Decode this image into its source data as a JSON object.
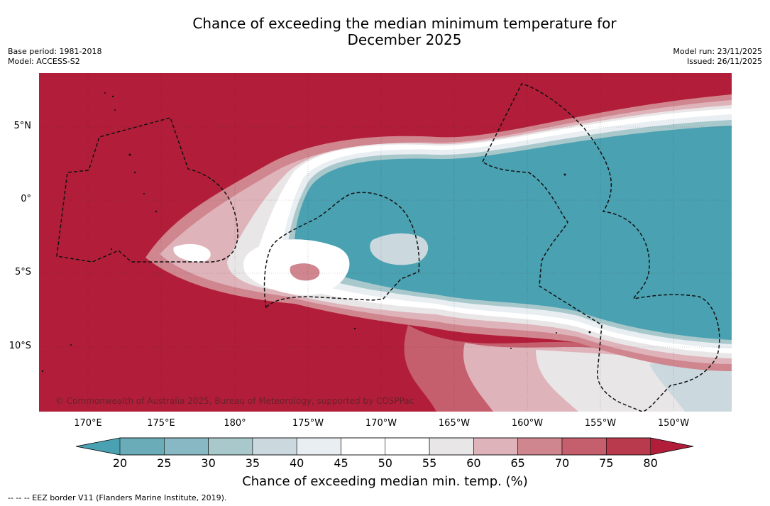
{
  "title_line1": "Chance of exceeding the median minimum temperature for",
  "title_line2": "December 2025",
  "base_period": "Base period: 1981-2018",
  "model": "Model: ACCESS-S2",
  "model_run": "Model run: 23/11/2025",
  "issued": "Issued: 26/11/2025",
  "copyright": "© Commonwealth of Australia 2025, Bureau of Meteorology, supported by COSPPac",
  "lat_labels": [
    "5°N",
    "0°",
    "5°S",
    "10°S"
  ],
  "lon_labels": [
    "170°E",
    "175°E",
    "180°",
    "175°W",
    "170°W",
    "165°W",
    "160°W",
    "155°W",
    "150°W"
  ],
  "colorbar": {
    "label": "Chance of exceeding median min. temp. (%)",
    "ticks": [
      "20",
      "25",
      "30",
      "35",
      "40",
      "45",
      "50",
      "55",
      "60",
      "65",
      "70",
      "75",
      "80"
    ],
    "colors": [
      "#4aa1b2",
      "#6aacb8",
      "#88b8c3",
      "#a9c8cb",
      "#cbd8de",
      "#e8eef2",
      "#ffffff",
      "#ffffff",
      "#e9e6e8",
      "#dfb3ba",
      "#d0868f",
      "#c55f6d",
      "#b83a4c",
      "#b21e39"
    ]
  },
  "legend_text": "--  --  -- EEZ border V11 (Flanders Marine Institute, 2019)."
}
